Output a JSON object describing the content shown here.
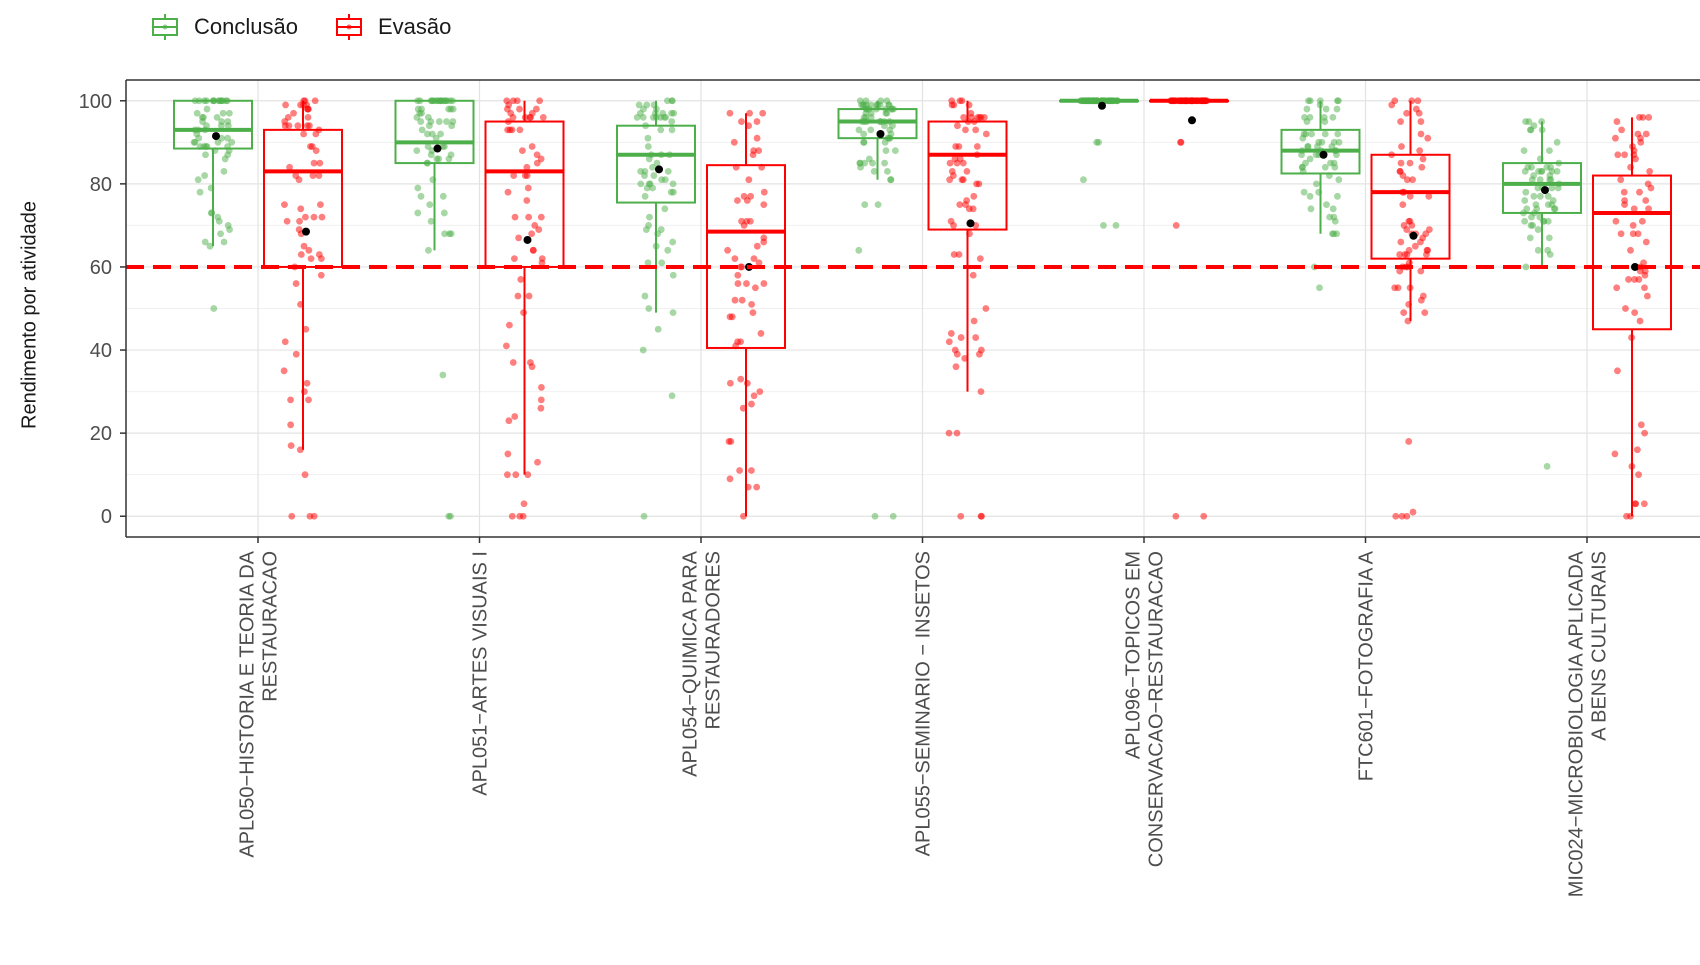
{
  "chart_data": {
    "type": "boxplot",
    "ylabel": "Rendimento por atividade",
    "xlabel": "",
    "ylim": [
      -5,
      105
    ],
    "yticks": [
      0,
      20,
      40,
      60,
      80,
      100
    ],
    "threshold": 60,
    "legend": {
      "position": "top-left",
      "entries": [
        {
          "name": "Conclusão",
          "color": "#4daf4a"
        },
        {
          "name": "Evasão",
          "color": "#ff0000"
        }
      ]
    },
    "colors": {
      "Conclusão": "#4daf4a",
      "Evasão": "#ff0000",
      "mean": "#000000"
    },
    "categories": [
      {
        "lines": [
          "APL050−HISTORIA E TEORIA DA",
          "RESTAURACAO"
        ]
      },
      {
        "lines": [
          "APL051−ARTES VISUAIS I"
        ]
      },
      {
        "lines": [
          "APL054−QUIMICA PARA",
          "RESTAURADORES"
        ]
      },
      {
        "lines": [
          "APL055−SEMINARIO − INSETOS"
        ]
      },
      {
        "lines": [
          "APL096−TOPICOS EM",
          "CONSERVACAO−RESTAURACAO"
        ]
      },
      {
        "lines": [
          "FTC601−FOTOGRAFIA A"
        ]
      },
      {
        "lines": [
          "MIC024−MICROBIOLOGIA APLICADA",
          "A BENS CULTURAIS"
        ]
      }
    ],
    "series": [
      {
        "name": "Conclusão",
        "boxes": [
          {
            "whisker_low": 65,
            "q1": 88.5,
            "median": 93,
            "q3": 100,
            "whisker_high": 100,
            "mean": 91.5,
            "outliers": [
              50
            ]
          },
          {
            "whisker_low": 64,
            "q1": 85,
            "median": 90,
            "q3": 100,
            "whisker_high": 100,
            "mean": 88.5,
            "outliers": [
              34,
              0,
              0
            ]
          },
          {
            "whisker_low": 49,
            "q1": 75.5,
            "median": 87,
            "q3": 94,
            "whisker_high": 100,
            "mean": 83.5,
            "outliers": [
              45,
              40,
              29,
              0
            ]
          },
          {
            "whisker_low": 81,
            "q1": 91,
            "median": 95,
            "q3": 98,
            "whisker_high": 100,
            "mean": 92,
            "outliers": [
              75,
              75,
              64,
              0,
              0
            ]
          },
          {
            "whisker_low": 100,
            "q1": 100,
            "median": 100,
            "q3": 100,
            "whisker_high": 100,
            "mean": 98.8,
            "outliers": [
              90,
              90,
              81,
              70,
              70
            ]
          },
          {
            "whisker_low": 68,
            "q1": 82.5,
            "median": 88,
            "q3": 93,
            "whisker_high": 100,
            "mean": 87,
            "outliers": [
              60,
              55
            ]
          },
          {
            "whisker_low": 60,
            "q1": 73,
            "median": 80,
            "q3": 85,
            "whisker_high": 95,
            "mean": 78.5,
            "outliers": [
              12
            ]
          }
        ]
      },
      {
        "name": "Evasão",
        "boxes": [
          {
            "whisker_low": 16,
            "q1": 60,
            "median": 83,
            "q3": 93,
            "whisker_high": 100,
            "mean": 68.5,
            "outliers": [
              10,
              0,
              0,
              0
            ]
          },
          {
            "whisker_low": 10,
            "q1": 60,
            "median": 83,
            "q3": 95,
            "whisker_high": 100,
            "mean": 66.5,
            "outliers": [
              3,
              0,
              0,
              0
            ]
          },
          {
            "whisker_low": 0,
            "q1": 40.5,
            "median": 68.5,
            "q3": 84.5,
            "whisker_high": 97,
            "mean": 60,
            "outliers": []
          },
          {
            "whisker_low": 30,
            "q1": 69,
            "median": 87,
            "q3": 95,
            "whisker_high": 100,
            "mean": 70.5,
            "outliers": [
              20,
              20,
              0,
              0,
              0
            ]
          },
          {
            "whisker_low": 100,
            "q1": 100,
            "median": 100,
            "q3": 100,
            "whisker_high": 100,
            "mean": 95.3,
            "outliers": [
              90,
              90,
              70,
              0,
              0
            ]
          },
          {
            "whisker_low": 47,
            "q1": 62,
            "median": 78,
            "q3": 87,
            "whisker_high": 100,
            "mean": 67.5,
            "outliers": [
              18,
              1,
              0,
              0,
              0
            ]
          },
          {
            "whisker_low": 0,
            "q1": 45,
            "median": 73,
            "q3": 82,
            "whisker_high": 96,
            "mean": 60,
            "outliers": []
          }
        ]
      }
    ]
  }
}
